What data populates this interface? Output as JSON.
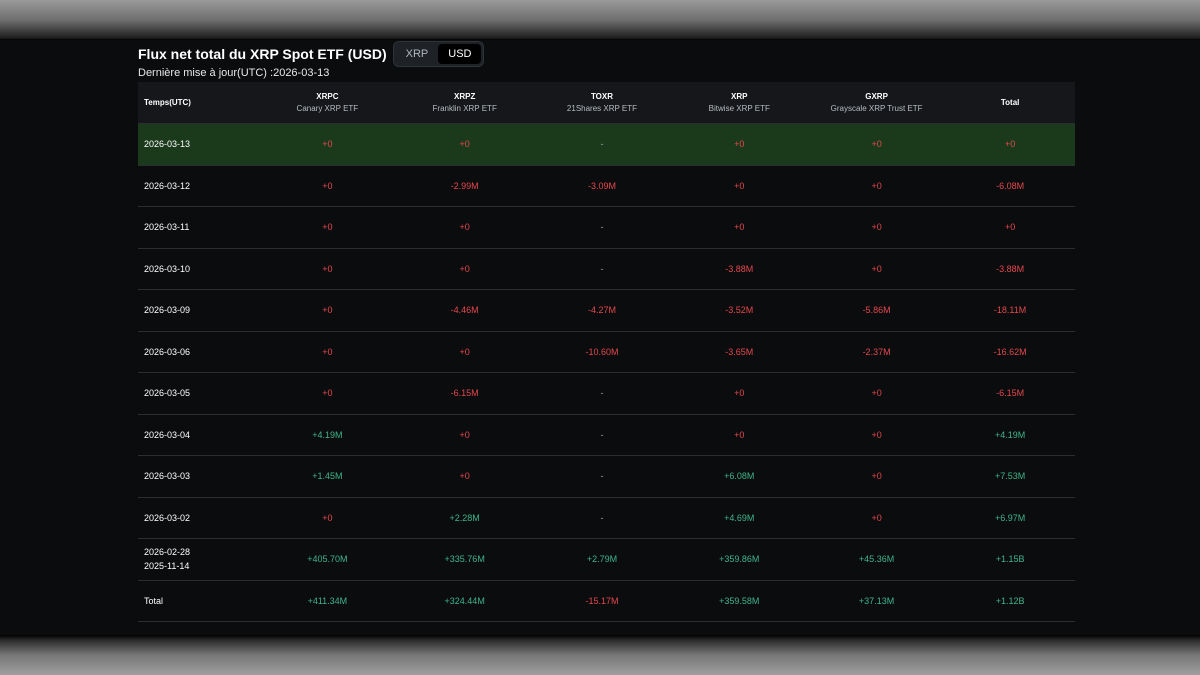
{
  "title": "Flux net total du XRP Spot ETF (USD)",
  "toggle": {
    "options": [
      "XRP",
      "USD"
    ],
    "active": "USD"
  },
  "updated": "Dernière mise à jour(UTC) :2026-03-13",
  "colors": {
    "negative": "#e5484d",
    "positive": "#3fb58a",
    "neutral": "#9aa0a6",
    "highlight": "#1b3a1c"
  },
  "columns": [
    {
      "ticker": "Temps(UTC)",
      "name": ""
    },
    {
      "ticker": "XRPC",
      "name": "Canary XRP ETF"
    },
    {
      "ticker": "XRPZ",
      "name": "Franklin XRP ETF"
    },
    {
      "ticker": "TOXR",
      "name": "21Shares XRP ETF"
    },
    {
      "ticker": "XRP",
      "name": "Bitwise XRP ETF"
    },
    {
      "ticker": "GXRP",
      "name": "Grayscale XRP Trust ETF"
    },
    {
      "ticker": "Total",
      "name": ""
    }
  ],
  "rows": [
    {
      "date": [
        "2026-03-13"
      ],
      "highlight": true,
      "values": [
        "+0",
        "+0",
        "-",
        "+0",
        "+0",
        "+0"
      ],
      "signs": [
        "neg",
        "neg",
        "neu",
        "neg",
        "neg",
        "neg"
      ]
    },
    {
      "date": [
        "2026-03-12"
      ],
      "values": [
        "+0",
        "-2.99M",
        "-3.09M",
        "+0",
        "+0",
        "-6.08M"
      ],
      "signs": [
        "neg",
        "neg",
        "neg",
        "neg",
        "neg",
        "neg"
      ]
    },
    {
      "date": [
        "2026-03-11"
      ],
      "values": [
        "+0",
        "+0",
        "-",
        "+0",
        "+0",
        "+0"
      ],
      "signs": [
        "neg",
        "neg",
        "neu",
        "neg",
        "neg",
        "neg"
      ]
    },
    {
      "date": [
        "2026-03-10"
      ],
      "values": [
        "+0",
        "+0",
        "-",
        "-3.88M",
        "+0",
        "-3.88M"
      ],
      "signs": [
        "neg",
        "neg",
        "neu",
        "neg",
        "neg",
        "neg"
      ]
    },
    {
      "date": [
        "2026-03-09"
      ],
      "values": [
        "+0",
        "-4.46M",
        "-4.27M",
        "-3.52M",
        "-5.86M",
        "-18.11M"
      ],
      "signs": [
        "neg",
        "neg",
        "neg",
        "neg",
        "neg",
        "neg"
      ]
    },
    {
      "date": [
        "2026-03-06"
      ],
      "values": [
        "+0",
        "+0",
        "-10.60M",
        "-3.65M",
        "-2.37M",
        "-16.62M"
      ],
      "signs": [
        "neg",
        "neg",
        "neg",
        "neg",
        "neg",
        "neg"
      ]
    },
    {
      "date": [
        "2026-03-05"
      ],
      "values": [
        "+0",
        "-6.15M",
        "-",
        "+0",
        "+0",
        "-6.15M"
      ],
      "signs": [
        "neg",
        "neg",
        "neu",
        "neg",
        "neg",
        "neg"
      ]
    },
    {
      "date": [
        "2026-03-04"
      ],
      "values": [
        "+4.19M",
        "+0",
        "-",
        "+0",
        "+0",
        "+4.19M"
      ],
      "signs": [
        "pos",
        "neg",
        "neu",
        "neg",
        "neg",
        "pos"
      ]
    },
    {
      "date": [
        "2026-03-03"
      ],
      "values": [
        "+1.45M",
        "+0",
        "-",
        "+6.08M",
        "+0",
        "+7.53M"
      ],
      "signs": [
        "pos",
        "neg",
        "neu",
        "pos",
        "neg",
        "pos"
      ]
    },
    {
      "date": [
        "2026-03-02"
      ],
      "values": [
        "+0",
        "+2.28M",
        "-",
        "+4.69M",
        "+0",
        "+6.97M"
      ],
      "signs": [
        "neg",
        "pos",
        "neu",
        "pos",
        "neg",
        "pos"
      ]
    },
    {
      "date": [
        "2026-02-28",
        "2025-11-14"
      ],
      "values": [
        "+405.70M",
        "+335.76M",
        "+2.79M",
        "+359.86M",
        "+45.36M",
        "+1.15B"
      ],
      "signs": [
        "pos",
        "pos",
        "pos",
        "pos",
        "pos",
        "pos"
      ]
    },
    {
      "date": [
        "Total"
      ],
      "values": [
        "+411.34M",
        "+324.44M",
        "-15.17M",
        "+359.58M",
        "+37.13M",
        "+1.12B"
      ],
      "signs": [
        "pos",
        "pos",
        "neg",
        "pos",
        "pos",
        "pos"
      ]
    }
  ]
}
